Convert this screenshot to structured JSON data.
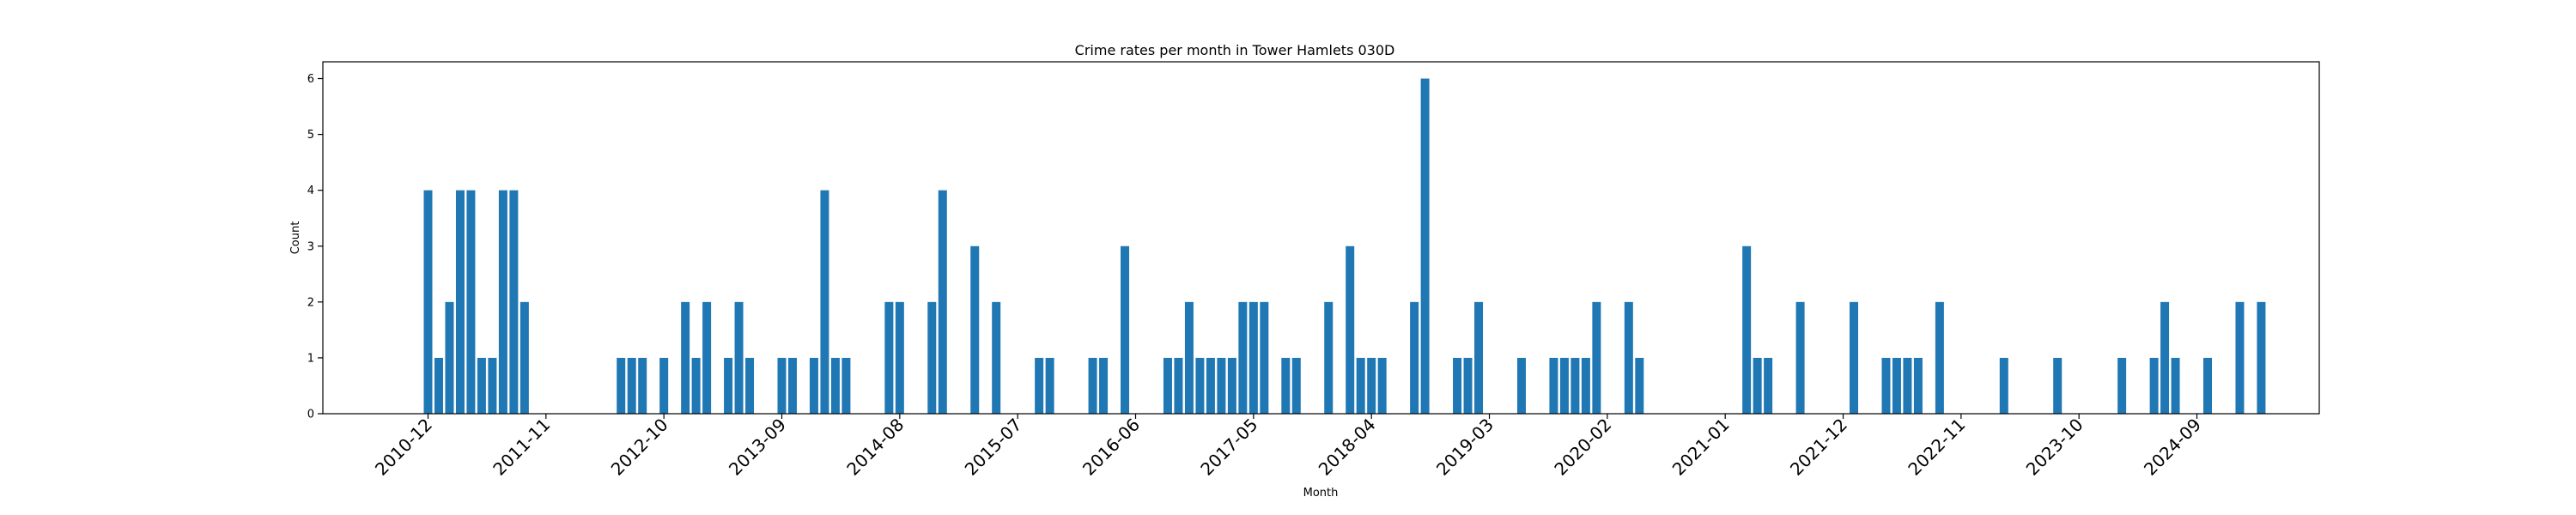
{
  "chart_data": {
    "type": "bar",
    "title": "Crime rates per month in Tower Hamlets 030D",
    "xlabel": "Month",
    "ylabel": "Count",
    "ylim": [
      0,
      6.3
    ],
    "yticks": [
      "0",
      "1",
      "2",
      "3",
      "4",
      "5",
      "6"
    ],
    "xtick_labels": [
      "2010-12",
      "2011-11",
      "2012-10",
      "2013-09",
      "2014-08",
      "2015-07",
      "2016-06",
      "2017-05",
      "2018-04",
      "2019-03",
      "2020-02",
      "2021-01",
      "2021-12",
      "2022-11",
      "2023-10",
      "2024-09"
    ],
    "bar_color": "#1f77b4",
    "grid": false,
    "points": [
      {
        "x": "2010-12",
        "y": 4
      },
      {
        "x": "2011-01",
        "y": 1
      },
      {
        "x": "2011-02",
        "y": 2
      },
      {
        "x": "2011-03",
        "y": 4
      },
      {
        "x": "2011-04",
        "y": 4
      },
      {
        "x": "2011-05",
        "y": 1
      },
      {
        "x": "2011-06",
        "y": 1
      },
      {
        "x": "2011-07",
        "y": 4
      },
      {
        "x": "2011-08",
        "y": 4
      },
      {
        "x": "2011-09",
        "y": 2
      },
      {
        "x": "2012-06",
        "y": 1
      },
      {
        "x": "2012-07",
        "y": 1
      },
      {
        "x": "2012-08",
        "y": 1
      },
      {
        "x": "2012-10",
        "y": 1
      },
      {
        "x": "2012-12",
        "y": 2
      },
      {
        "x": "2013-01",
        "y": 1
      },
      {
        "x": "2013-02",
        "y": 2
      },
      {
        "x": "2013-04",
        "y": 1
      },
      {
        "x": "2013-05",
        "y": 2
      },
      {
        "x": "2013-06",
        "y": 1
      },
      {
        "x": "2013-09",
        "y": 1
      },
      {
        "x": "2013-10",
        "y": 1
      },
      {
        "x": "2013-12",
        "y": 1
      },
      {
        "x": "2014-01",
        "y": 4
      },
      {
        "x": "2014-02",
        "y": 1
      },
      {
        "x": "2014-03",
        "y": 1
      },
      {
        "x": "2014-07",
        "y": 2
      },
      {
        "x": "2014-08",
        "y": 2
      },
      {
        "x": "2014-11",
        "y": 2
      },
      {
        "x": "2014-12",
        "y": 4
      },
      {
        "x": "2015-03",
        "y": 3
      },
      {
        "x": "2015-05",
        "y": 2
      },
      {
        "x": "2015-09",
        "y": 1
      },
      {
        "x": "2015-10",
        "y": 1
      },
      {
        "x": "2016-02",
        "y": 1
      },
      {
        "x": "2016-03",
        "y": 1
      },
      {
        "x": "2016-05",
        "y": 3
      },
      {
        "x": "2016-09",
        "y": 1
      },
      {
        "x": "2016-10",
        "y": 1
      },
      {
        "x": "2016-11",
        "y": 2
      },
      {
        "x": "2016-12",
        "y": 1
      },
      {
        "x": "2017-01",
        "y": 1
      },
      {
        "x": "2017-02",
        "y": 1
      },
      {
        "x": "2017-03",
        "y": 1
      },
      {
        "x": "2017-04",
        "y": 2
      },
      {
        "x": "2017-05",
        "y": 2
      },
      {
        "x": "2017-06",
        "y": 2
      },
      {
        "x": "2017-08",
        "y": 1
      },
      {
        "x": "2017-09",
        "y": 1
      },
      {
        "x": "2017-12",
        "y": 2
      },
      {
        "x": "2018-02",
        "y": 3
      },
      {
        "x": "2018-03",
        "y": 1
      },
      {
        "x": "2018-04",
        "y": 1
      },
      {
        "x": "2018-05",
        "y": 1
      },
      {
        "x": "2018-08",
        "y": 2
      },
      {
        "x": "2018-09",
        "y": 6
      },
      {
        "x": "2018-12",
        "y": 1
      },
      {
        "x": "2019-01",
        "y": 1
      },
      {
        "x": "2019-02",
        "y": 2
      },
      {
        "x": "2019-06",
        "y": 1
      },
      {
        "x": "2019-09",
        "y": 1
      },
      {
        "x": "2019-10",
        "y": 1
      },
      {
        "x": "2019-11",
        "y": 1
      },
      {
        "x": "2019-12",
        "y": 1
      },
      {
        "x": "2020-01",
        "y": 2
      },
      {
        "x": "2020-04",
        "y": 2
      },
      {
        "x": "2020-05",
        "y": 1
      },
      {
        "x": "2021-03",
        "y": 3
      },
      {
        "x": "2021-04",
        "y": 1
      },
      {
        "x": "2021-05",
        "y": 1
      },
      {
        "x": "2021-08",
        "y": 2
      },
      {
        "x": "2022-01",
        "y": 2
      },
      {
        "x": "2022-04",
        "y": 1
      },
      {
        "x": "2022-05",
        "y": 1
      },
      {
        "x": "2022-06",
        "y": 1
      },
      {
        "x": "2022-07",
        "y": 1
      },
      {
        "x": "2022-09",
        "y": 2
      },
      {
        "x": "2023-03",
        "y": 1
      },
      {
        "x": "2023-08",
        "y": 1
      },
      {
        "x": "2024-02",
        "y": 1
      },
      {
        "x": "2024-05",
        "y": 1
      },
      {
        "x": "2024-06",
        "y": 2
      },
      {
        "x": "2024-07",
        "y": 1
      },
      {
        "x": "2024-10",
        "y": 1
      },
      {
        "x": "2025-01",
        "y": 2
      },
      {
        "x": "2025-03",
        "y": 2
      }
    ]
  }
}
